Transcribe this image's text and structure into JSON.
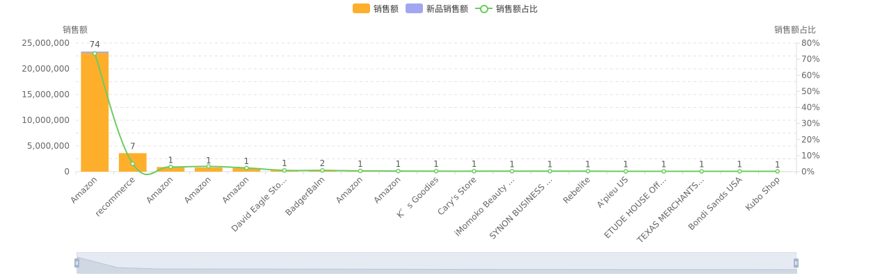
{
  "legend": {
    "items": [
      {
        "label": "销售额",
        "color": "#fdaf2c",
        "kind": "bar"
      },
      {
        "label": "新品销售额",
        "color": "#a0a7f0",
        "kind": "bar"
      },
      {
        "label": "销售额占比",
        "color": "#6ccb5f",
        "kind": "line"
      }
    ]
  },
  "chart_data": {
    "type": "bar",
    "categories": [
      "Amazon",
      "recommerce",
      "Amazon",
      "Amazon",
      "Amazon",
      "David Eagle Sto...",
      "BadgerBalm",
      "Amazon",
      "Amazon",
      "K゛s Goodies",
      "Cary's Store",
      "iMomoko Beauty ...",
      "SYNON BUSINESS ...",
      "Rebelite",
      "A'pieu US",
      "ETUDE HOUSE Off...",
      "TEXAS MERCHANTS...",
      "Bondi Sands USA",
      "Kubo Shop"
    ],
    "series": [
      {
        "name": "销售额",
        "axis": "left",
        "color": "#fdaf2c",
        "values": [
          23100000,
          3600000,
          900000,
          800000,
          700000,
          250000,
          300000,
          150000,
          130000,
          120000,
          110000,
          100000,
          90000,
          80000,
          70000,
          60000,
          50000,
          40000,
          30000
        ]
      },
      {
        "name": "新品销售额",
        "axis": "left",
        "color": "#a0a7f0",
        "values": [
          250000,
          0,
          0,
          0,
          0,
          0,
          0,
          0,
          0,
          0,
          0,
          0,
          0,
          0,
          0,
          0,
          0,
          0,
          0
        ]
      },
      {
        "name": "销售额占比",
        "axis": "right",
        "type": "line",
        "color": "#6ccb5f",
        "values": [
          73.5,
          5,
          3,
          3.3,
          2.3,
          0.8,
          0.8,
          0.5,
          0.4,
          0.3,
          0.3,
          0.3,
          0.3,
          0.3,
          0.2,
          0.2,
          0.2,
          0.2,
          0.2
        ]
      }
    ],
    "data_labels": [
      "74",
      "7",
      "1",
      "1",
      "1",
      "1",
      "2",
      "1",
      "1",
      "1",
      "1",
      "1",
      "1",
      "1",
      "1",
      "1",
      "1",
      "1",
      "1"
    ],
    "y_left": {
      "title": "销售额",
      "min": 0,
      "max": 25000000,
      "ticks": [
        "0",
        "5,000,000",
        "10,000,000",
        "15,000,000",
        "20,000,000",
        "25,000,000"
      ]
    },
    "y_right": {
      "title": "销售额占比",
      "min": 0,
      "max": 80,
      "ticks": [
        "0%",
        "10%",
        "20%",
        "30%",
        "40%",
        "50%",
        "60%",
        "70%",
        "80%"
      ]
    },
    "grid": true,
    "legend_position": "top-center"
  }
}
